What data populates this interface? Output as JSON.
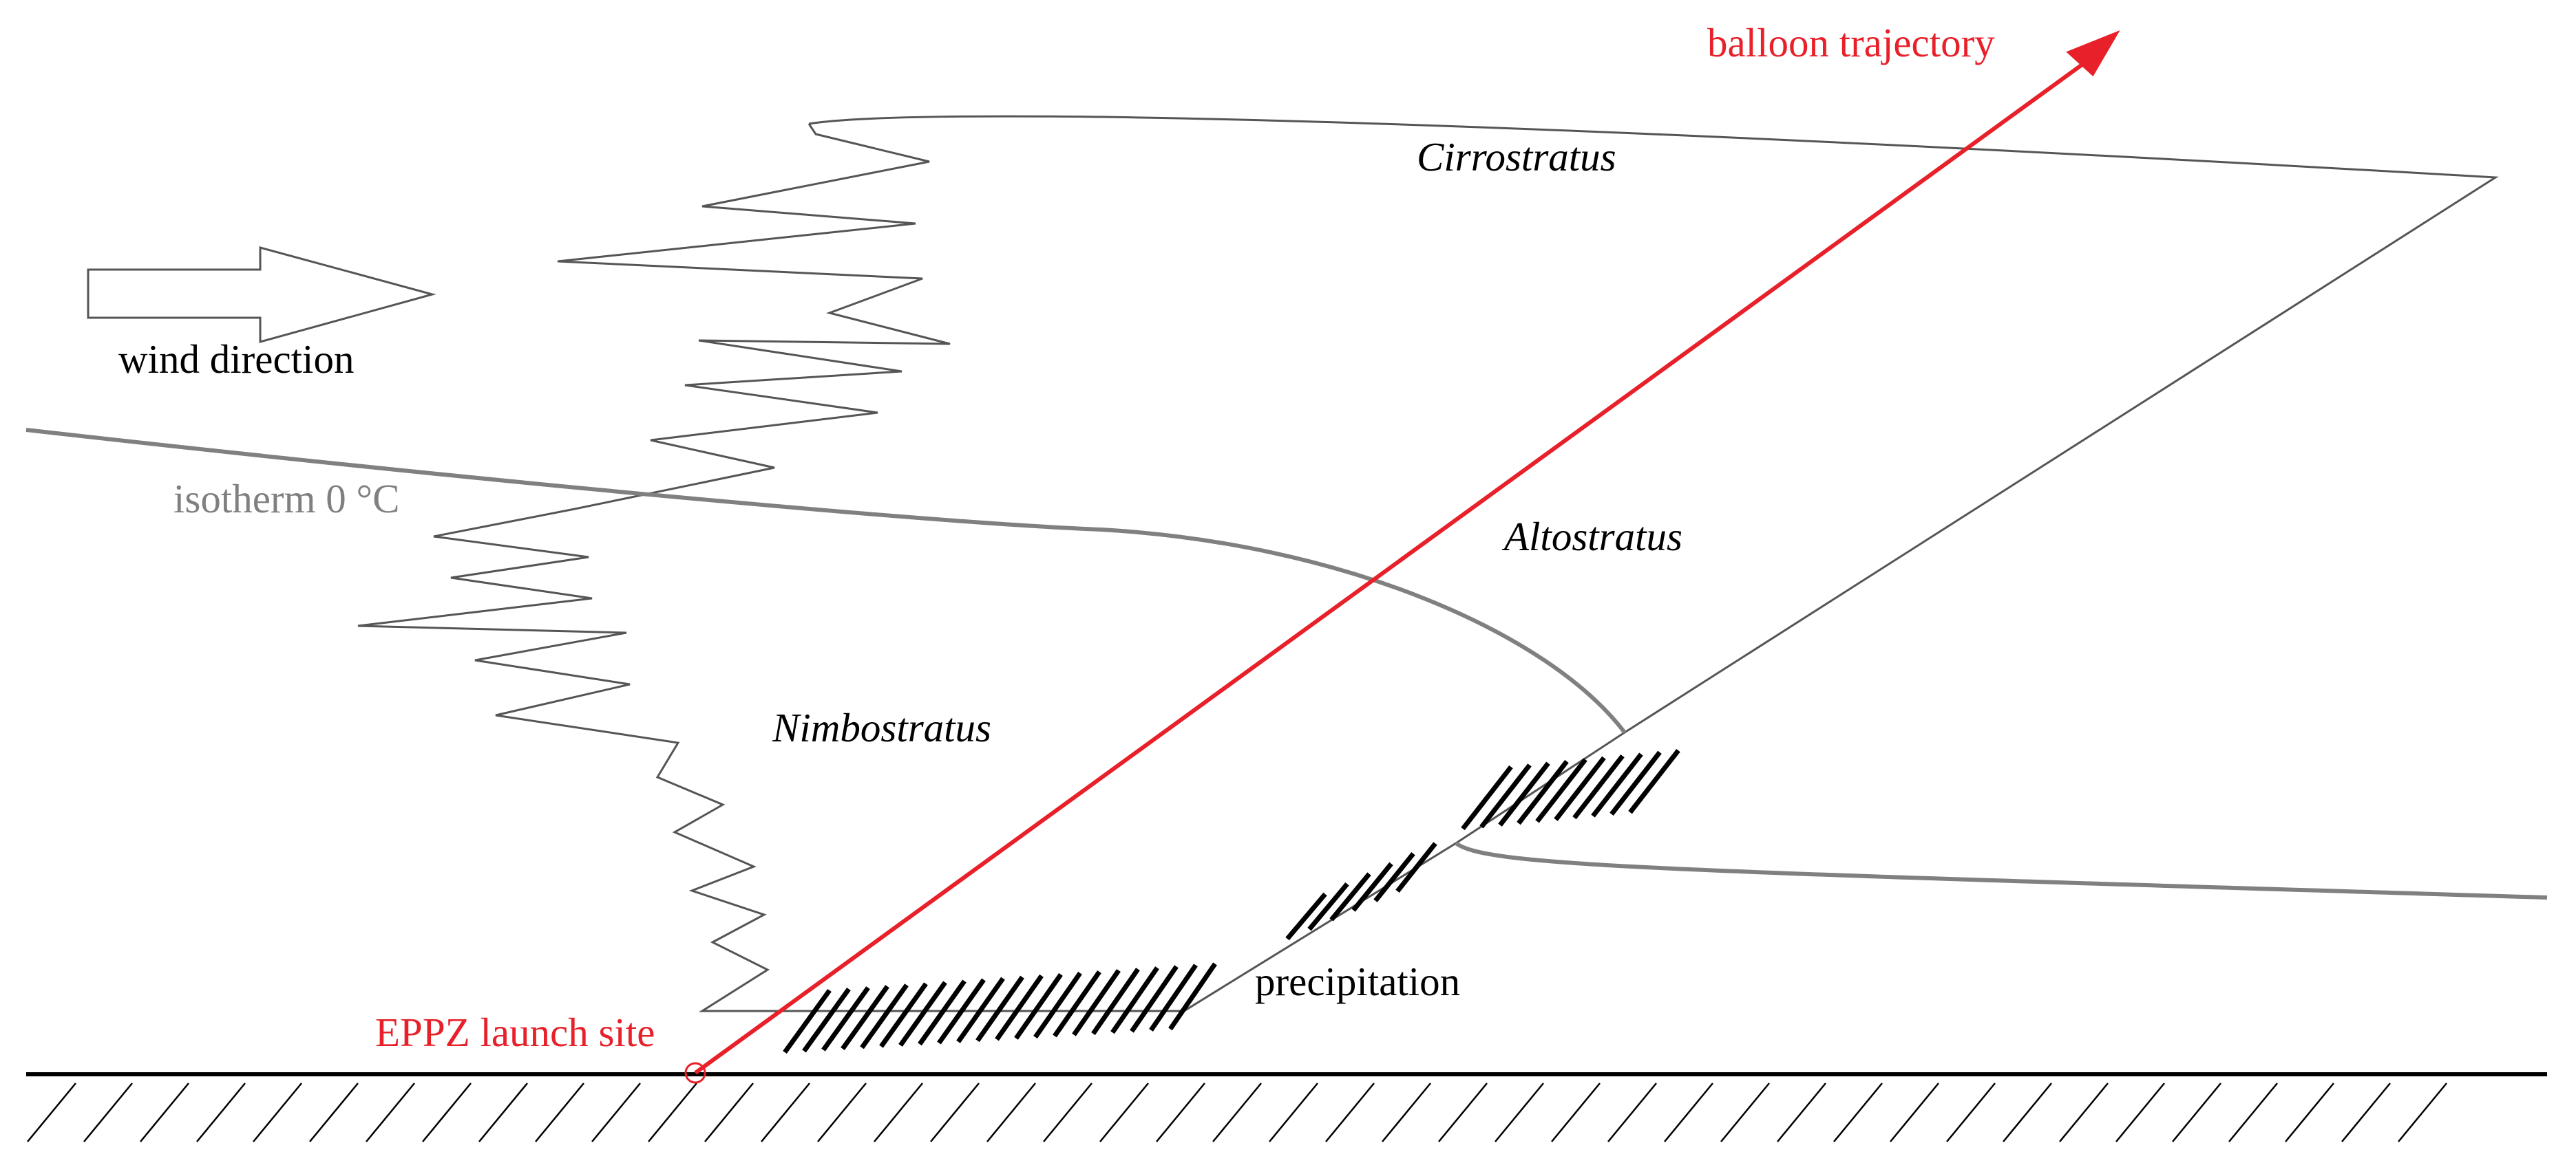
{
  "labels": {
    "balloon_trajectory": "balloon trajectory",
    "cirrostratus": "Cirrostratus",
    "wind_direction": "wind direction",
    "isotherm": "isotherm 0 °C",
    "altostratus": "Altostratus",
    "nimbostratus": "Nimbostratus",
    "precipitation": "precipitation",
    "launch_site": "EPPZ launch site"
  },
  "colors": {
    "trajectory": "#e8202a",
    "isotherm": "#808080",
    "outline": "#000000",
    "cloud_edge": "#555555"
  },
  "icons": {
    "wind_arrow": "hollow-right-arrow-icon",
    "launch_marker": "circle-marker-icon"
  }
}
